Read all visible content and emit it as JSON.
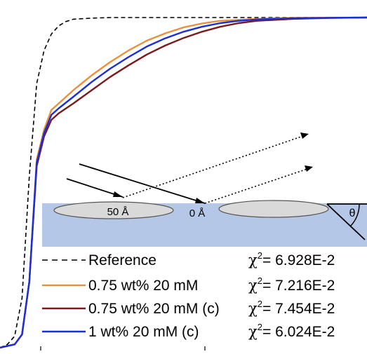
{
  "chart_data": {
    "type": "line",
    "title": "",
    "xlabel": "",
    "ylabel": "",
    "grid": false,
    "legend_position": "bottom",
    "series": [
      {
        "name": "Reference",
        "chi2": "6.928E-2",
        "color": "#000000",
        "dash": true,
        "points": [
          [
            0.0,
            0.0
          ],
          [
            0.02,
            0.01
          ],
          [
            0.04,
            0.035
          ],
          [
            0.06,
            0.15
          ],
          [
            0.08,
            0.52
          ],
          [
            0.1,
            0.8
          ],
          [
            0.12,
            0.9
          ],
          [
            0.14,
            0.95
          ],
          [
            0.16,
            0.975
          ],
          [
            0.18,
            0.988
          ],
          [
            0.2,
            0.995
          ],
          [
            0.25,
            0.998
          ],
          [
            0.3,
            1.0
          ],
          [
            1.0,
            1.0
          ]
        ]
      },
      {
        "name": "0.75 wt% 20 mM",
        "chi2": "7.216E-2",
        "color": "#e8913a",
        "dash": false,
        "points": [
          [
            0.0,
            0.0
          ],
          [
            0.02,
            0.005
          ],
          [
            0.04,
            0.01
          ],
          [
            0.06,
            0.04
          ],
          [
            0.08,
            0.2
          ],
          [
            0.1,
            0.57
          ],
          [
            0.12,
            0.66
          ],
          [
            0.14,
            0.72
          ],
          [
            0.16,
            0.74
          ],
          [
            0.2,
            0.78
          ],
          [
            0.25,
            0.825
          ],
          [
            0.3,
            0.865
          ],
          [
            0.35,
            0.9
          ],
          [
            0.4,
            0.93
          ],
          [
            0.45,
            0.952
          ],
          [
            0.5,
            0.97
          ],
          [
            0.55,
            0.982
          ],
          [
            0.6,
            0.99
          ],
          [
            0.7,
            0.996
          ],
          [
            0.8,
            0.999
          ],
          [
            1.0,
            1.0
          ]
        ]
      },
      {
        "name": "0.75 wt% 20 mM (c)",
        "chi2": "7.454E-2",
        "color": "#7a1a1a",
        "dash": false,
        "points": [
          [
            0.0,
            0.0
          ],
          [
            0.02,
            0.005
          ],
          [
            0.04,
            0.01
          ],
          [
            0.06,
            0.04
          ],
          [
            0.08,
            0.2
          ],
          [
            0.1,
            0.55
          ],
          [
            0.12,
            0.64
          ],
          [
            0.14,
            0.69
          ],
          [
            0.16,
            0.71
          ],
          [
            0.2,
            0.74
          ],
          [
            0.25,
            0.78
          ],
          [
            0.3,
            0.82
          ],
          [
            0.35,
            0.855
          ],
          [
            0.4,
            0.888
          ],
          [
            0.45,
            0.915
          ],
          [
            0.5,
            0.938
          ],
          [
            0.55,
            0.957
          ],
          [
            0.6,
            0.972
          ],
          [
            0.65,
            0.983
          ],
          [
            0.7,
            0.99
          ],
          [
            0.8,
            0.996
          ],
          [
            0.9,
            0.999
          ],
          [
            1.0,
            1.0
          ]
        ]
      },
      {
        "name": "1 wt% 20 mM (c)",
        "chi2": "6.024E-2",
        "color": "#1a2fdc",
        "dash": false,
        "points": [
          [
            0.0,
            0.0
          ],
          [
            0.02,
            0.005
          ],
          [
            0.04,
            0.01
          ],
          [
            0.06,
            0.04
          ],
          [
            0.08,
            0.2
          ],
          [
            0.1,
            0.56
          ],
          [
            0.12,
            0.65
          ],
          [
            0.14,
            0.705
          ],
          [
            0.16,
            0.725
          ],
          [
            0.2,
            0.76
          ],
          [
            0.25,
            0.805
          ],
          [
            0.3,
            0.845
          ],
          [
            0.35,
            0.88
          ],
          [
            0.4,
            0.912
          ],
          [
            0.45,
            0.937
          ],
          [
            0.5,
            0.957
          ],
          [
            0.55,
            0.972
          ],
          [
            0.6,
            0.983
          ],
          [
            0.65,
            0.99
          ],
          [
            0.7,
            0.994
          ],
          [
            0.8,
            0.998
          ],
          [
            1.0,
            1.0
          ]
        ]
      }
    ]
  },
  "inset": {
    "left_disc_label": "50 Å",
    "center_label": "0 Å",
    "angle_label": "θ",
    "layer_color": "#b4c7e7",
    "disc_color": "#d9d9d9"
  },
  "legend": {
    "chi2_symbol": "χ",
    "chi2_exponent": "2",
    "chi2_equals": "="
  }
}
